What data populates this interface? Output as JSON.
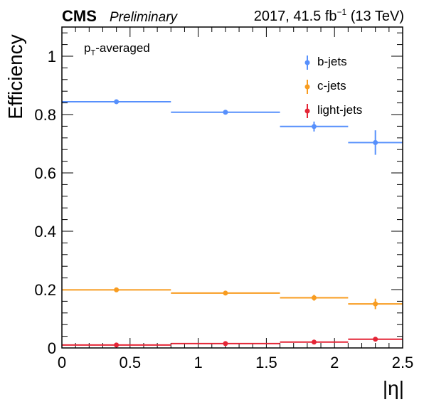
{
  "header": {
    "experiment": "CMS",
    "status": "Preliminary",
    "lumi_prefix": "2017, 41.5 fb",
    "lumi_exp": "−1",
    "lumi_suffix": " (13 TeV)"
  },
  "annotation": {
    "main": "p",
    "sub": "T",
    "rest": "-averaged"
  },
  "chart_data": {
    "type": "scatter",
    "xlabel": "|η|",
    "ylabel": "Efficiency",
    "xlim": [
      0,
      2.5
    ],
    "ylim": [
      0,
      1.1
    ],
    "xticks": [
      0,
      0.5,
      1,
      1.5,
      2,
      2.5
    ],
    "xtick_labels": [
      "0",
      "0.5",
      "1",
      "1.5",
      "2",
      "2.5"
    ],
    "yticks": [
      0,
      0.2,
      0.4,
      0.6,
      0.8,
      1
    ],
    "ytick_labels": [
      "0",
      "0.2",
      "0.4",
      "0.6",
      "0.8",
      "1"
    ],
    "grid": false,
    "legend_position": "top-right",
    "bin_edges": [
      0,
      0.8,
      1.6,
      2.1,
      2.5
    ],
    "x": [
      0.4,
      1.2,
      1.85,
      2.3
    ],
    "series": [
      {
        "name": "b-jets",
        "color": "#5790fc",
        "values": [
          0.844,
          0.808,
          0.759,
          0.704
        ],
        "yerr": [
          0.005,
          0.006,
          0.017,
          0.042
        ]
      },
      {
        "name": "c-jets",
        "color": "#f89c20",
        "values": [
          0.199,
          0.188,
          0.172,
          0.151
        ],
        "yerr": [
          0.004,
          0.005,
          0.01,
          0.018
        ]
      },
      {
        "name": "light-jets",
        "color": "#e42536",
        "values": [
          0.01,
          0.015,
          0.02,
          0.03
        ],
        "yerr": [
          0.002,
          0.002,
          0.003,
          0.005
        ]
      }
    ]
  }
}
